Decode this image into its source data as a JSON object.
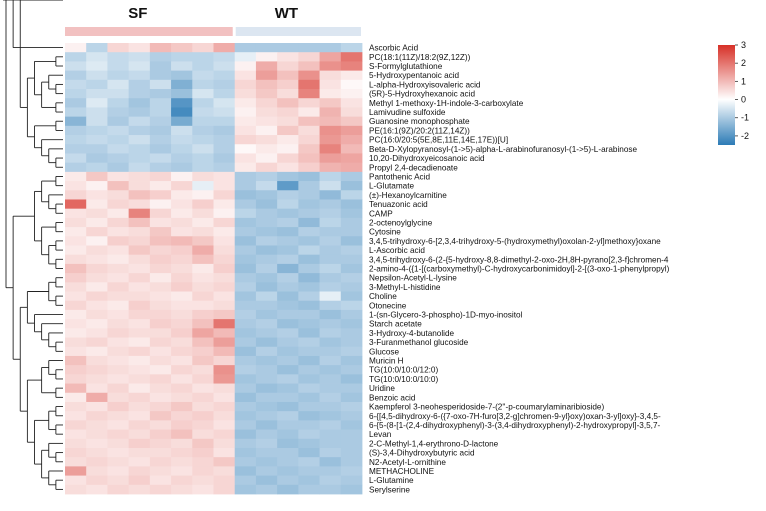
{
  "chart_data": {
    "type": "heatmap",
    "title": "",
    "groups": [
      {
        "name": "SF",
        "color": "#F2C1C1",
        "columns": 8
      },
      {
        "name": "WT",
        "color": "#DCE6F1",
        "columns": 6
      }
    ],
    "colorbar": {
      "min": -2.5,
      "max": 3,
      "ticks": [
        3,
        2,
        1,
        0,
        -1,
        -2
      ],
      "low_color": "#2C7BB6",
      "mid_color": "#FFFFFF",
      "high_color": "#D73027"
    },
    "rows": [
      {
        "label": "Ascorbic Acid",
        "values": [
          0.2,
          -0.8,
          0.6,
          0.4,
          1.0,
          0.8,
          0.6,
          1.2,
          -1.0,
          -1.0,
          -1.0,
          -1.0,
          -1.0,
          -0.8
        ]
      },
      {
        "label": "PC(18:1(11Z)/18:2(9Z,12Z))",
        "values": [
          -0.8,
          -0.5,
          -0.7,
          -0.6,
          -0.9,
          -0.8,
          -0.8,
          -0.7,
          -0.3,
          0.2,
          0.4,
          0.6,
          1.3,
          2.0
        ]
      },
      {
        "label": "S-Formylglutathione",
        "values": [
          -0.6,
          -0.4,
          -0.7,
          -0.5,
          -1.0,
          -0.6,
          -0.8,
          -0.6,
          0.2,
          1.2,
          0.6,
          0.9,
          1.6,
          1.8
        ]
      },
      {
        "label": "5-Hydroxypentanoic acid",
        "values": [
          -0.9,
          -0.6,
          -0.8,
          -0.7,
          -1.0,
          -1.1,
          -0.7,
          -0.8,
          0.4,
          1.4,
          0.9,
          1.6,
          0.5,
          0.3
        ]
      },
      {
        "label": "L-alpha-Hydroxyisovaleric acid",
        "values": [
          -0.7,
          -0.8,
          -0.5,
          -0.9,
          -0.6,
          -1.5,
          -0.8,
          -0.9,
          0.6,
          0.9,
          0.7,
          2.0,
          0.4,
          0.1
        ]
      },
      {
        "label": "(5R)-5-Hydroxyhexanoic acid",
        "values": [
          -0.8,
          -0.6,
          -0.6,
          -0.9,
          -1.0,
          -1.2,
          -0.5,
          -0.8,
          0.5,
          0.8,
          0.5,
          1.8,
          0.3,
          0.2
        ]
      },
      {
        "label": "Methyl 1-methoxy-1H-indole-3-carboxylate",
        "values": [
          -1.0,
          -0.4,
          -0.8,
          -1.1,
          -0.8,
          -2.0,
          -0.8,
          -0.5,
          0.3,
          0.6,
          0.9,
          0.6,
          0.8,
          0.4
        ]
      },
      {
        "label": "Lamivudine sulfoxide",
        "values": [
          -0.8,
          -0.6,
          -0.9,
          -1.0,
          -0.8,
          -2.2,
          -0.7,
          -0.6,
          0.2,
          0.5,
          0.6,
          0.3,
          1.1,
          0.5
        ]
      },
      {
        "label": "Guanosine monophosphate",
        "values": [
          -1.4,
          -0.6,
          -1.0,
          -0.7,
          -0.9,
          -1.6,
          -0.8,
          -0.8,
          0.3,
          0.4,
          0.5,
          0.9,
          1.0,
          0.8
        ]
      },
      {
        "label": "PE(16:1(9Z)/20:2(11Z,14Z))",
        "values": [
          -0.9,
          -0.8,
          -0.7,
          -0.9,
          -1.0,
          -0.6,
          -0.9,
          -1.0,
          0.4,
          0.2,
          0.8,
          0.5,
          1.6,
          1.4
        ]
      },
      {
        "label": "PC(16:0/20:5(5E,8E,11E,14E,17E))[U]",
        "values": [
          -0.8,
          -0.7,
          -0.8,
          -0.6,
          -0.9,
          -0.7,
          -0.8,
          -0.9,
          0.6,
          0.5,
          0.3,
          0.6,
          1.5,
          1.2
        ]
      },
      {
        "label": "Beta-D-Xylopyranosyl-(1->5)-alpha-L-arabinofuranosyl-(1->5)-L-arabinose",
        "values": [
          -0.9,
          -0.9,
          -0.7,
          -0.8,
          -1.0,
          -0.8,
          -0.6,
          -0.9,
          0.1,
          0.3,
          0.2,
          0.8,
          1.8,
          1.0
        ]
      },
      {
        "label": "10,20-Dihydroxyeicosanoic acid",
        "values": [
          -0.7,
          -1.0,
          -0.9,
          -0.8,
          -0.7,
          -0.9,
          -0.8,
          -1.0,
          0.4,
          0.2,
          0.6,
          0.9,
          1.4,
          1.3
        ]
      },
      {
        "label": "Propyl 2,4-decadienoate",
        "values": [
          -0.9,
          -0.8,
          -1.0,
          -0.7,
          -0.9,
          -1.0,
          -0.8,
          -0.9,
          0.3,
          0.6,
          0.4,
          0.7,
          1.1,
          1.2
        ]
      },
      {
        "label": "Pantothenic Acid",
        "values": [
          0.3,
          0.8,
          0.4,
          0.5,
          0.6,
          0.2,
          0.5,
          0.4,
          -1.0,
          -0.9,
          -1.1,
          -1.2,
          -0.8,
          -1.0
        ]
      },
      {
        "label": "L-Glutamate",
        "values": [
          0.4,
          0.2,
          0.9,
          0.5,
          0.3,
          0.6,
          -0.3,
          0.4,
          -1.0,
          -0.7,
          -1.9,
          -1.0,
          -0.6,
          -1.2
        ]
      },
      {
        "label": "(±)-Hexanoylcarnitine",
        "values": [
          0.6,
          0.4,
          0.5,
          0.9,
          0.7,
          0.3,
          0.2,
          0.6,
          -1.2,
          -1.1,
          -0.9,
          -1.0,
          -1.3,
          -0.8
        ]
      },
      {
        "label": "Tenuazonic acid",
        "values": [
          2.2,
          0.3,
          0.6,
          0.5,
          0.2,
          0.4,
          0.7,
          0.3,
          -1.0,
          -1.2,
          -0.8,
          -1.1,
          -1.0,
          -1.2
        ]
      },
      {
        "label": "CAMP",
        "values": [
          0.4,
          0.5,
          0.3,
          1.8,
          0.6,
          0.3,
          0.5,
          0.2,
          -0.8,
          -1.0,
          -1.1,
          -1.0,
          -0.9,
          -1.1
        ]
      },
      {
        "label": "2-octenoylglycine",
        "values": [
          0.5,
          0.3,
          0.6,
          0.9,
          0.4,
          0.5,
          0.3,
          0.6,
          -1.1,
          -1.0,
          -0.9,
          -1.3,
          -0.8,
          -1.0
        ]
      },
      {
        "label": "Cytosine",
        "values": [
          0.3,
          0.6,
          0.4,
          0.5,
          0.8,
          0.4,
          0.5,
          0.3,
          -1.0,
          -1.1,
          -1.2,
          -0.9,
          -1.0,
          -1.0
        ]
      },
      {
        "label": "3,4,5-trihydroxy-6-[2,3,4-trihydroxy-5-(hydroxymethyl)oxolan-2-yl]methoxy}oxane",
        "values": [
          0.4,
          0.2,
          0.7,
          0.6,
          0.9,
          1.0,
          0.8,
          0.4,
          -1.2,
          -0.9,
          -1.0,
          -1.1,
          -0.9,
          -1.2
        ]
      },
      {
        "label": "L-Ascorbic acid",
        "values": [
          0.3,
          0.5,
          0.4,
          0.8,
          0.6,
          0.7,
          1.2,
          0.5,
          -1.0,
          -1.2,
          -1.1,
          -0.8,
          -1.0,
          -0.9
        ]
      },
      {
        "label": "3,4,5-trihydroxy-6-(2-{5-hydroxy-8,8-dimethyl-2-oxo-2H,8H-pyrano[2,3-f]chromen-4",
        "values": [
          0.5,
          0.4,
          0.3,
          0.5,
          0.7,
          0.6,
          0.9,
          0.6,
          -1.1,
          -1.0,
          -0.9,
          -1.2,
          -1.0,
          -1.0
        ]
      },
      {
        "label": "2-amino-4-({1-[(carboxymethyl)-C-hydroxycarbonimidoyl]-2-[(3-oxo-1-phenylpropyl)",
        "values": [
          0.9,
          0.6,
          0.5,
          0.4,
          0.6,
          0.5,
          0.3,
          0.7,
          -1.2,
          -0.9,
          -1.4,
          -1.0,
          -0.8,
          -1.1
        ]
      },
      {
        "label": "Nepsilon-Acetyl-L-lysine",
        "values": [
          0.7,
          0.5,
          0.4,
          0.6,
          0.3,
          0.6,
          0.4,
          0.5,
          -1.0,
          -1.1,
          -0.9,
          -1.3,
          -1.0,
          -0.9
        ]
      },
      {
        "label": "3-Methyl-L-histidine",
        "values": [
          0.5,
          0.3,
          0.6,
          0.4,
          0.5,
          0.7,
          0.5,
          0.6,
          -0.9,
          -1.2,
          -1.0,
          -1.1,
          -0.9,
          -1.0
        ]
      },
      {
        "label": "Choline",
        "values": [
          0.4,
          0.6,
          0.5,
          0.5,
          0.4,
          0.3,
          0.6,
          0.4,
          -1.1,
          -0.8,
          -1.2,
          -0.9,
          -0.3,
          -1.1
        ]
      },
      {
        "label": "Otonecine",
        "values": [
          0.6,
          0.4,
          0.3,
          0.7,
          0.5,
          0.4,
          0.4,
          0.5,
          -1.0,
          -1.0,
          -1.1,
          -1.2,
          -0.9,
          -0.8
        ]
      },
      {
        "label": "1-(sn-Glycero-3-phospho)-1D-myo-inositol",
        "values": [
          0.3,
          0.5,
          0.4,
          0.6,
          0.6,
          0.5,
          0.7,
          0.8,
          -0.9,
          -1.1,
          -1.0,
          -1.0,
          -1.2,
          -1.0
        ]
      },
      {
        "label": "Starch acetate",
        "values": [
          0.4,
          0.3,
          0.5,
          0.4,
          0.7,
          0.6,
          0.9,
          2.0,
          -1.0,
          -0.9,
          -1.2,
          -1.1,
          -1.0,
          -1.1
        ]
      },
      {
        "label": "3-Hydroxy-4-butanolide",
        "values": [
          0.3,
          0.4,
          0.6,
          0.5,
          0.5,
          0.7,
          1.3,
          1.0,
          -1.1,
          -1.0,
          -0.9,
          -1.2,
          -0.9,
          -1.0
        ]
      },
      {
        "label": "3-Furanmethanol glucoside",
        "values": [
          0.5,
          0.6,
          0.4,
          0.3,
          0.6,
          0.5,
          0.9,
          1.4,
          -1.0,
          -1.2,
          -1.0,
          -0.9,
          -1.1,
          -1.0
        ]
      },
      {
        "label": "Glucose",
        "values": [
          0.4,
          0.3,
          0.5,
          0.6,
          0.4,
          0.6,
          0.7,
          1.0,
          -1.2,
          -0.9,
          -1.1,
          -1.0,
          -1.0,
          -0.9
        ]
      },
      {
        "label": "Muricin H",
        "values": [
          0.9,
          0.5,
          0.4,
          0.3,
          0.5,
          0.4,
          0.8,
          0.6,
          -1.0,
          -1.1,
          -1.0,
          -1.2,
          -0.9,
          -1.1
        ]
      },
      {
        "label": "TG(10:0/10:0/12:0)",
        "values": [
          0.7,
          0.6,
          0.5,
          0.4,
          0.3,
          0.6,
          0.5,
          1.6,
          -0.9,
          -1.0,
          -1.2,
          -1.0,
          -1.1,
          -1.0
        ]
      },
      {
        "label": "TG(10:0/10:0/10:0)",
        "values": [
          0.6,
          0.5,
          0.4,
          0.5,
          0.6,
          0.4,
          0.6,
          1.5,
          -1.1,
          -1.0,
          -0.9,
          -1.1,
          -1.0,
          -1.2
        ]
      },
      {
        "label": "Uridine",
        "values": [
          1.0,
          0.4,
          0.6,
          0.3,
          0.5,
          0.6,
          0.4,
          0.5,
          -1.0,
          -1.2,
          -1.1,
          -0.9,
          -1.0,
          -1.0
        ]
      },
      {
        "label": "Benzoic acid",
        "values": [
          0.3,
          1.2,
          0.5,
          0.6,
          0.4,
          0.5,
          0.6,
          0.4,
          -1.2,
          -1.0,
          -1.0,
          -1.1,
          -0.9,
          -1.1
        ]
      },
      {
        "label": "Kaempferol 3-neohesperidoside-7-(2''-p-coumarylaminaribioside)",
        "values": [
          0.5,
          0.4,
          0.7,
          0.5,
          0.6,
          0.8,
          0.5,
          0.6,
          -1.0,
          -1.1,
          -1.2,
          -1.0,
          -1.0,
          -0.9
        ]
      },
      {
        "label": "6-{[4,5-dihydroxy-6-({7-oxo-7H-furo[3,2-g]chromen-9-yl}oxy)oxan-3-yl]oxy}-3,4,5-",
        "values": [
          0.4,
          0.6,
          0.5,
          0.4,
          0.8,
          0.6,
          0.7,
          0.5,
          -1.1,
          -1.0,
          -0.9,
          -1.2,
          -1.1,
          -1.0
        ]
      },
      {
        "label": "6-{5-(8-[1-(2,4-dihydroxyphenyl)-3-(3,4-dihydroxyphenyl)-2-hydroxypropyl]-3,5,7-",
        "values": [
          0.6,
          0.5,
          0.4,
          0.6,
          0.5,
          0.7,
          0.6,
          0.4,
          -1.0,
          -1.2,
          -1.0,
          -1.0,
          -0.9,
          -1.1
        ]
      },
      {
        "label": "Levan",
        "values": [
          0.4,
          0.5,
          0.6,
          0.5,
          0.7,
          0.9,
          0.5,
          0.6,
          -1.2,
          -1.0,
          -1.1,
          -0.9,
          -1.0,
          -1.0
        ]
      },
      {
        "label": "2-C-Methyl-1,4-erythrono-D-lactone",
        "values": [
          0.5,
          0.4,
          0.5,
          0.7,
          0.6,
          0.5,
          0.8,
          0.5,
          -1.0,
          -0.9,
          -1.2,
          -1.1,
          -1.0,
          -1.0
        ]
      },
      {
        "label": "(S)-3,4-Dihydroxybutyric acid",
        "values": [
          0.6,
          0.5,
          0.4,
          0.5,
          0.5,
          0.6,
          0.7,
          0.4,
          -1.1,
          -1.0,
          -1.0,
          -1.2,
          -0.9,
          -1.0
        ]
      },
      {
        "label": "N2-Acetyl-L-ornithine",
        "values": [
          0.5,
          0.6,
          0.5,
          0.4,
          0.6,
          0.5,
          0.6,
          0.8,
          -1.0,
          -1.1,
          -1.0,
          -0.9,
          -1.2,
          -1.0
        ]
      },
      {
        "label": "METHACHOLINE",
        "values": [
          1.4,
          0.5,
          0.4,
          0.6,
          0.5,
          0.4,
          0.6,
          0.5,
          -1.2,
          -1.0,
          -1.1,
          -1.0,
          -1.0,
          -0.9
        ]
      },
      {
        "label": "L-Glutamine",
        "values": [
          0.4,
          0.6,
          0.5,
          0.7,
          0.4,
          0.6,
          0.5,
          0.6,
          -1.0,
          -1.2,
          -1.0,
          -1.1,
          -0.9,
          -1.0
        ]
      },
      {
        "label": "Serylserine",
        "values": [
          0.5,
          0.4,
          0.6,
          0.5,
          0.6,
          0.5,
          0.4,
          0.6,
          -1.1,
          -1.0,
          -1.2,
          -1.0,
          -1.0,
          -1.1
        ]
      }
    ]
  }
}
